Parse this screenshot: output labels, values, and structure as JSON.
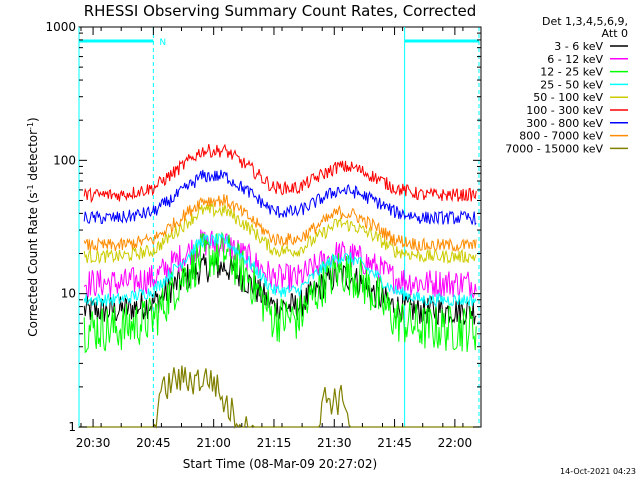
{
  "chart_data": {
    "type": "line",
    "title": "RHESSI Observing Summary Count Rates, Corrected",
    "xlabel": "Start Time (08-Mar-09 20:27:02)",
    "ylabel_main": "Corrected Count Rate (s",
    "ylabel_sup1": "-1",
    "ylabel_mid": " detector",
    "ylabel_sup2": "-1",
    "ylabel_end": ")",
    "y_scale": "log",
    "ylim": [
      1,
      1000
    ],
    "xlim_minutes": [
      -3.5,
      96.5
    ],
    "x_ticks": [
      {
        "min": 0,
        "label": "20:30"
      },
      {
        "min": 15,
        "label": "20:45"
      },
      {
        "min": 30,
        "label": "21:00"
      },
      {
        "min": 45,
        "label": "21:15"
      },
      {
        "min": 60,
        "label": "21:30"
      },
      {
        "min": 75,
        "label": "21:45"
      },
      {
        "min": 90,
        "label": "22:00"
      }
    ],
    "y_ticks": [
      {
        "value": 1,
        "label": "1"
      },
      {
        "value": 10,
        "label": "10"
      },
      {
        "value": 100,
        "label": "100"
      },
      {
        "value": 1000,
        "label": "1000"
      }
    ],
    "legend_header": [
      "Det 1,3,4,5,6,9,",
      "Att 0"
    ],
    "legend_position": "right",
    "series": [
      {
        "name": "3 - 6 keV",
        "color": "#000000",
        "x": [
          -3,
          7,
          15,
          21,
          27,
          33,
          39,
          45,
          51,
          57,
          61,
          65,
          70,
          75,
          82,
          96
        ],
        "y": [
          7.5,
          7.5,
          8.5,
          12,
          15.5,
          16,
          12,
          8,
          8,
          11.5,
          14,
          13,
          10,
          8,
          7.5,
          7.5
        ]
      },
      {
        "name": "6 - 12 keV",
        "color": "#ff00ff",
        "x": [
          -3,
          7,
          15,
          21,
          27,
          33,
          39,
          45,
          51,
          57,
          61,
          65,
          70,
          75,
          82,
          96
        ],
        "y": [
          12,
          12,
          13,
          18,
          24,
          24,
          18,
          13,
          13,
          17,
          20,
          19,
          16,
          13,
          12,
          12
        ]
      },
      {
        "name": "12 - 25 keV",
        "color": "#00ff00",
        "x": [
          -3,
          7,
          15,
          21,
          27,
          33,
          39,
          45,
          51,
          57,
          61,
          65,
          70,
          75,
          82,
          96
        ],
        "y": [
          5.5,
          5.5,
          6.5,
          12,
          19,
          20,
          13,
          6.5,
          6.5,
          12,
          15,
          14,
          10,
          6.5,
          5.5,
          5.5
        ]
      },
      {
        "name": "25 - 50 keV",
        "color": "#00ffff",
        "x": [
          -3,
          7,
          15,
          21,
          27,
          33,
          39,
          45,
          51,
          57,
          61,
          65,
          70,
          75,
          82,
          96
        ],
        "y": [
          9,
          9,
          10.5,
          16,
          25,
          25,
          17,
          10.5,
          10.5,
          15.5,
          19,
          18,
          14,
          10.5,
          9,
          9
        ]
      },
      {
        "name": "50 - 100 keV",
        "color": "#cccc00",
        "x": [
          -3,
          7,
          15,
          21,
          27,
          33,
          39,
          45,
          51,
          57,
          61,
          65,
          70,
          75,
          82,
          96
        ],
        "y": [
          19,
          19,
          21,
          30,
          42,
          42,
          31,
          21,
          21,
          28,
          34,
          32,
          27,
          21,
          19,
          19
        ]
      },
      {
        "name": "100 - 300 keV",
        "color": "#ff0000",
        "x": [
          -3,
          7,
          15,
          21,
          27,
          33,
          39,
          45,
          51,
          57,
          61,
          65,
          70,
          75,
          82,
          96
        ],
        "y": [
          55,
          55,
          62,
          85,
          118,
          118,
          88,
          62,
          62,
          78,
          90,
          88,
          75,
          62,
          55,
          55
        ]
      },
      {
        "name": "300 - 800 keV",
        "color": "#0000ff",
        "x": [
          -3,
          7,
          15,
          21,
          27,
          33,
          39,
          45,
          51,
          57,
          61,
          65,
          70,
          75,
          82,
          96
        ],
        "y": [
          37,
          37,
          41,
          55,
          76,
          76,
          57,
          41,
          41,
          52,
          60,
          58,
          50,
          41,
          37,
          37
        ]
      },
      {
        "name": "800 - 7000 keV",
        "color": "#ff8c00",
        "x": [
          -3,
          7,
          15,
          21,
          27,
          33,
          39,
          45,
          51,
          57,
          61,
          65,
          70,
          75,
          82,
          96
        ],
        "y": [
          23,
          23,
          25.5,
          35,
          50,
          50,
          37,
          25.5,
          25.5,
          34,
          41,
          39,
          32,
          25.5,
          23,
          23
        ]
      },
      {
        "name": "7000 - 15000 keV",
        "color": "#808000",
        "x": [
          15,
          16,
          20,
          22,
          28,
          30,
          32,
          40,
          56,
          57,
          63,
          64
        ],
        "y": [
          1,
          2,
          2.8,
          2.8,
          2.8,
          2.8,
          2,
          1,
          1,
          2,
          2,
          1
        ]
      }
    ],
    "night_bar_color": "#00ffff",
    "night_intervals": [
      {
        "start": -3.5,
        "end": 15
      },
      {
        "start": 77.5,
        "end": 96
      }
    ],
    "markers": [
      {
        "label": "N",
        "at": 16.5
      }
    ]
  },
  "footer": {
    "date_stamp": "14-Oct-2021 04:23"
  }
}
